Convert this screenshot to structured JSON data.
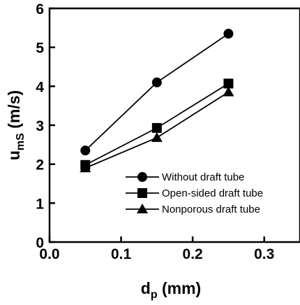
{
  "chart_data": {
    "type": "line",
    "x": [
      0.05,
      0.15,
      0.25
    ],
    "series": [
      {
        "name": "Without draft tube",
        "marker": "circle",
        "values": [
          2.35,
          4.1,
          5.35
        ]
      },
      {
        "name": "Open-sided draft tube",
        "marker": "square",
        "values": [
          1.98,
          2.93,
          4.07
        ]
      },
      {
        "name": "Nonporous draft tube",
        "marker": "triangle",
        "values": [
          1.9,
          2.68,
          3.85
        ]
      }
    ],
    "xlabel": {
      "main": "d",
      "sub": "p",
      "unit": " (mm)"
    },
    "ylabel": {
      "main": "u",
      "sub": "mS",
      "unit": " (m/s)"
    },
    "xlim": [
      0.0,
      0.35
    ],
    "ylim": [
      0,
      6
    ],
    "xticks": [
      "0.0",
      "0.1",
      "0.2",
      "0.3"
    ],
    "yticks": [
      "0",
      "1",
      "2",
      "3",
      "4",
      "5",
      "6"
    ],
    "grid": false,
    "legend_position": "bottom-right",
    "color": "#000000"
  }
}
